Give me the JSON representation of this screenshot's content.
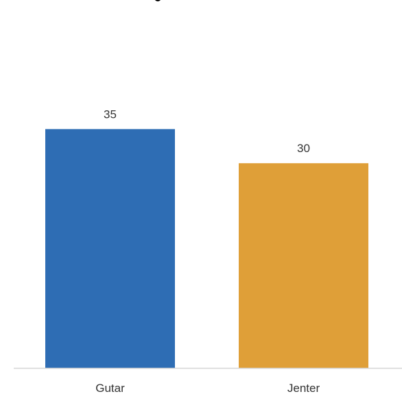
{
  "chart_data": {
    "type": "bar",
    "categories": [
      "Gutar",
      "Jenter"
    ],
    "values": [
      35,
      30
    ],
    "data_labels": [
      "35",
      "30"
    ],
    "colors": [
      "#2e6db4",
      "#df9f38"
    ],
    "ylim": [
      0,
      50
    ],
    "grid": false,
    "legend": "none"
  }
}
